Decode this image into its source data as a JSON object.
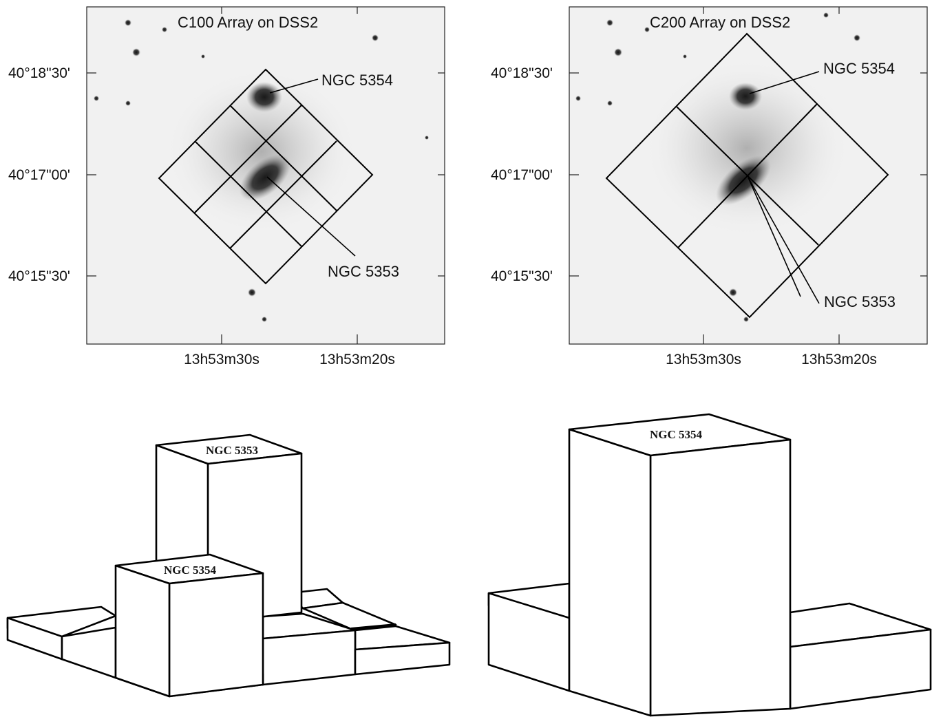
{
  "panels": {
    "c100": {
      "title": "C100  Array on DSS2",
      "ra_ticks": [
        "13h53m30s",
        "13h53m20s"
      ],
      "dec_ticks": [
        "40°18\"30'",
        "40°17\"00'",
        "40°15\"30'"
      ],
      "labels": {
        "ngc5354": "NGC 5354",
        "ngc5353": "NGC 5353"
      }
    },
    "c200": {
      "title": "C200  Array on DSS2",
      "ra_ticks": [
        "13h53m30s",
        "13h53m20s"
      ],
      "dec_ticks": [
        "40°18\"30'",
        "40°17\"00'",
        "40°15\"30'"
      ],
      "labels": {
        "ngc5354": "NGC 5354",
        "ngc5353": "NGC 5353"
      }
    }
  },
  "bar3d_left": {
    "tall_label": "NGC 5353",
    "mid_label": "NGC 5354"
  },
  "bar3d_right": {
    "tall_label": "NGC 5354"
  },
  "colors": {
    "sky": "#f1f1f1",
    "galaxy": "#2a2a2a",
    "grid": "#000000"
  }
}
